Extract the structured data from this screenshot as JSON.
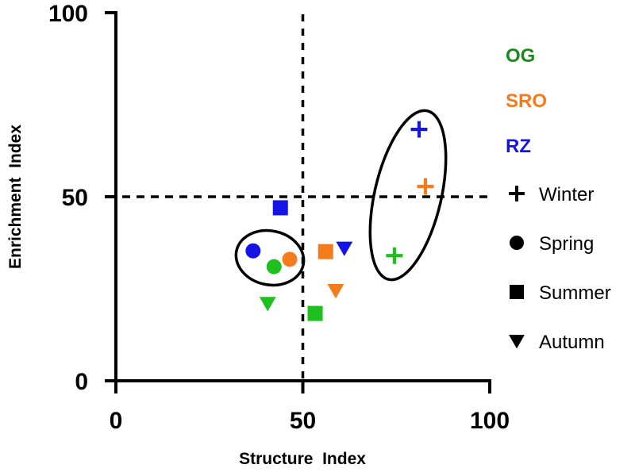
{
  "chart_data": {
    "type": "scatter",
    "title": "",
    "xlabel": "Structure  Index",
    "ylabel": "Enrichment  Index",
    "xlim": [
      0,
      100
    ],
    "ylim": [
      0,
      100
    ],
    "xticks": [
      "0",
      "50",
      "100"
    ],
    "yticks": [
      "0",
      "50",
      "100"
    ],
    "grid": false,
    "reference_lines": {
      "x": 50,
      "y": 50,
      "style": "dashed"
    },
    "legend_position": "right",
    "groups": [
      {
        "name": "OG",
        "color": "#1fbf1f",
        "label_color": "#1a8a1a"
      },
      {
        "name": "SRO",
        "color": "#f47c1c",
        "label_color": "#f47c1c"
      },
      {
        "name": "RZ",
        "color": "#1414e6",
        "label_color": "#1414e6"
      }
    ],
    "seasons": [
      {
        "name": "Winter",
        "marker": "plus"
      },
      {
        "name": "Spring",
        "marker": "circle"
      },
      {
        "name": "Summer",
        "marker": "square"
      },
      {
        "name": "Autumn",
        "marker": "triangle-down"
      }
    ],
    "series": [
      {
        "group": "OG",
        "season": "Winter",
        "x": 74.5,
        "y": 34
      },
      {
        "group": "OG",
        "season": "Spring",
        "x": 42.3,
        "y": 31
      },
      {
        "group": "OG",
        "season": "Summer",
        "x": 53.3,
        "y": 18.3
      },
      {
        "group": "OG",
        "season": "Autumn",
        "x": 40.6,
        "y": 21
      },
      {
        "group": "SRO",
        "season": "Winter",
        "x": 82.8,
        "y": 52.8
      },
      {
        "group": "SRO",
        "season": "Spring",
        "x": 46.5,
        "y": 33
      },
      {
        "group": "SRO",
        "season": "Summer",
        "x": 56.1,
        "y": 35.1
      },
      {
        "group": "SRO",
        "season": "Autumn",
        "x": 58.8,
        "y": 24.5
      },
      {
        "group": "RZ",
        "season": "Winter",
        "x": 81.1,
        "y": 68.3
      },
      {
        "group": "RZ",
        "season": "Spring",
        "x": 36.7,
        "y": 35.3
      },
      {
        "group": "RZ",
        "season": "Summer",
        "x": 44,
        "y": 47
      },
      {
        "group": "RZ",
        "season": "Autumn",
        "x": 61.1,
        "y": 36
      }
    ],
    "annotations": [
      {
        "type": "ellipse",
        "encloses": "Spring (all groups)"
      },
      {
        "type": "ellipse",
        "encloses": "Winter (all groups)"
      }
    ]
  }
}
